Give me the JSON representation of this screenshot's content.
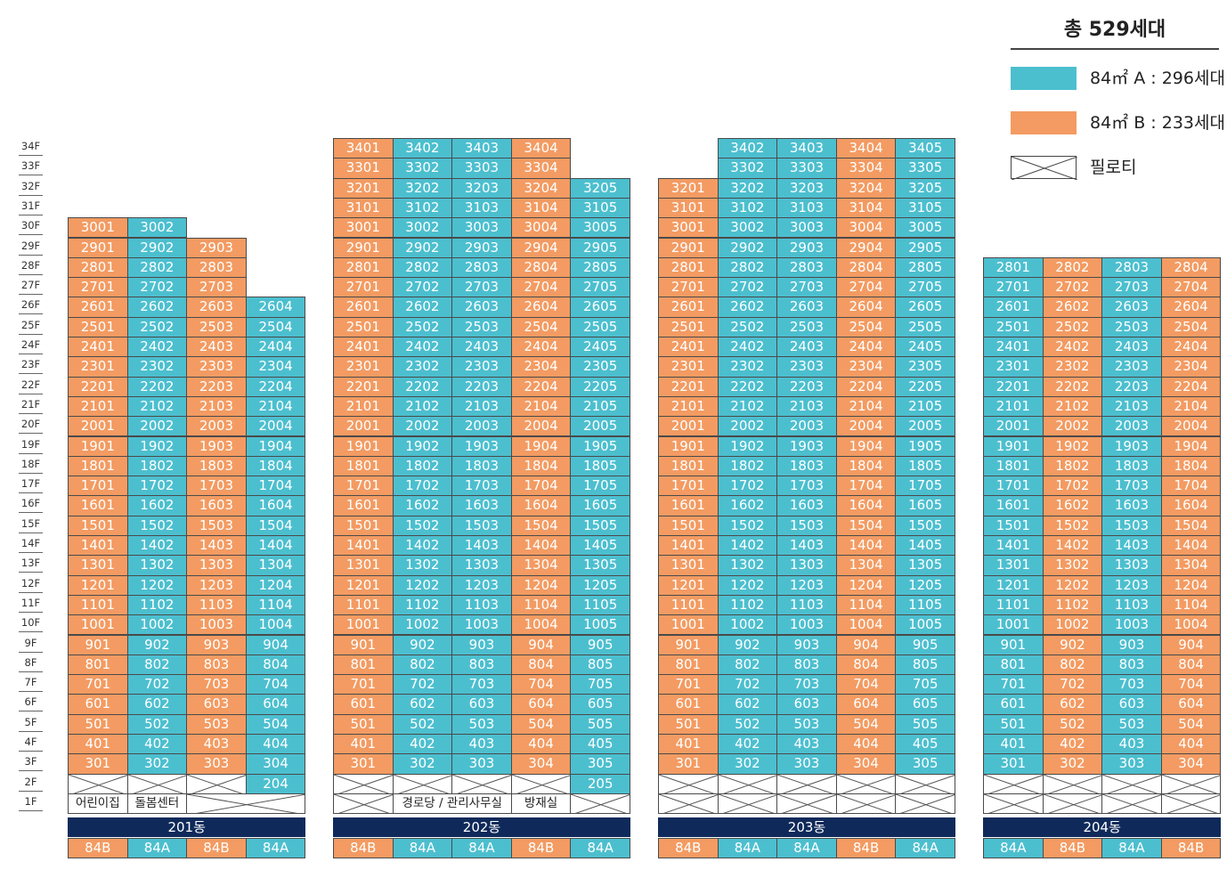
{
  "legend": {
    "total": "총 529세대",
    "colors": {
      "A": "#4cbfcf",
      "B": "#f39b62"
    },
    "items": [
      {
        "type": "A",
        "text": "84㎡ A : 296세대"
      },
      {
        "type": "B",
        "text": "84㎡ B : 233세대"
      },
      {
        "type": "P",
        "text": "필로티"
      }
    ]
  },
  "floor_labels": [
    "34F",
    "33F",
    "32F",
    "31F",
    "30F",
    "29F",
    "28F",
    "27F",
    "26F",
    "25F",
    "24F",
    "23F",
    "22F",
    "21F",
    "20F",
    "19F",
    "18F",
    "17F",
    "16F",
    "15F",
    "14F",
    "13F",
    "12F",
    "11F",
    "10F",
    "9F",
    "8F",
    "7F",
    "6F",
    "5F",
    "4F",
    "3F",
    "2F",
    "1F"
  ],
  "buildings": [
    {
      "name": "201동",
      "line_types": [
        "84B",
        "84A",
        "84B",
        "84A"
      ],
      "line_top": [
        30,
        30,
        29,
        26
      ],
      "line_first": [
        3,
        3,
        3,
        2
      ],
      "ground": [
        {
          "span": 1,
          "text": "어린이집"
        },
        {
          "span": 1,
          "text": "돌봄센터"
        },
        {
          "span": 1,
          "text": ""
        }
      ],
      "floor2": [
        {
          "span": 1,
          "text": ""
        },
        {
          "span": 1,
          "text": ""
        },
        {
          "span": 1,
          "text": ""
        }
      ]
    },
    {
      "name": "202동",
      "line_types": [
        "84B",
        "84A",
        "84A",
        "84B",
        "84A"
      ],
      "line_top": [
        34,
        34,
        34,
        34,
        32
      ],
      "line_first": [
        3,
        3,
        3,
        3,
        2
      ],
      "ground": [
        {
          "span": 1,
          "text": ""
        },
        {
          "span": 2,
          "text": "경로당 / 관리사무실"
        },
        {
          "span": 1,
          "text": "방재실"
        },
        {
          "span": 1,
          "text": ""
        }
      ],
      "floor2": [
        {
          "span": 1,
          "text": ""
        },
        {
          "span": 1,
          "text": ""
        },
        {
          "span": 1,
          "text": ""
        },
        {
          "span": 1,
          "text": ""
        }
      ]
    },
    {
      "name": "203동",
      "line_types": [
        "84B",
        "84A",
        "84A",
        "84B",
        "84A"
      ],
      "line_top": [
        32,
        34,
        34,
        34,
        34
      ],
      "line_first": [
        3,
        3,
        3,
        3,
        3
      ],
      "ground": [
        {
          "span": 1,
          "text": ""
        },
        {
          "span": 1,
          "text": ""
        },
        {
          "span": 1,
          "text": ""
        },
        {
          "span": 1,
          "text": ""
        },
        {
          "span": 1,
          "text": ""
        }
      ],
      "floor2": [
        {
          "span": 1,
          "text": ""
        },
        {
          "span": 1,
          "text": ""
        },
        {
          "span": 1,
          "text": ""
        },
        {
          "span": 1,
          "text": ""
        },
        {
          "span": 1,
          "text": ""
        }
      ]
    },
    {
      "name": "204동",
      "line_types": [
        "84A",
        "84B",
        "84A",
        "84B"
      ],
      "line_top": [
        28,
        28,
        28,
        28
      ],
      "line_first": [
        3,
        3,
        3,
        3
      ],
      "ground": [
        {
          "span": 1,
          "text": ""
        },
        {
          "span": 1,
          "text": ""
        },
        {
          "span": 1,
          "text": ""
        },
        {
          "span": 1,
          "text": ""
        }
      ],
      "floor2": [
        {
          "span": 1,
          "text": ""
        },
        {
          "span": 1,
          "text": ""
        },
        {
          "span": 1,
          "text": ""
        },
        {
          "span": 1,
          "text": ""
        }
      ]
    }
  ],
  "unit_overrides": {
    "201동": {
      "3001": "B",
      "3002": "A"
    },
    "202동": {},
    "203동": {},
    "204동": {}
  }
}
